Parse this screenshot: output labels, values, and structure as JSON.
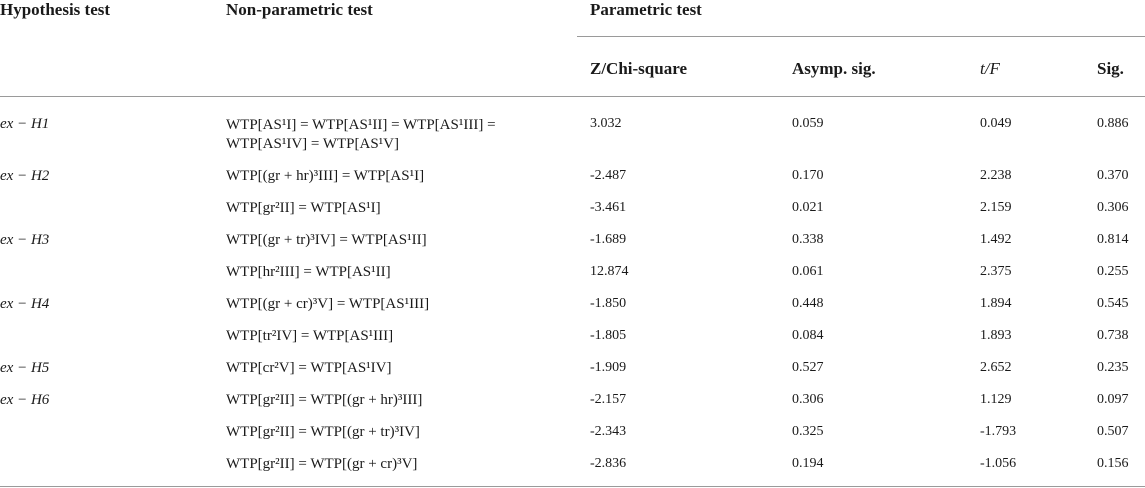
{
  "headers": {
    "hypothesis_test": "Hypothesis test",
    "non_parametric_test": "Non-parametric test",
    "parametric_test": "Parametric test",
    "z_chi_square": "Z/Chi-square",
    "asymp_sig": "Asymp. sig.",
    "t_f": "t/F",
    "sig": "Sig."
  },
  "rows": [
    {
      "hypothesis": "ex − H1",
      "formula": "WTP[AS¹I] = WTP[AS¹II] = WTP[AS¹III] = WTP[AS¹IV] = WTP[AS¹V]",
      "z": "3.032",
      "asymp": "0.059",
      "tf": "0.049",
      "sig": "0.886"
    },
    {
      "hypothesis": "ex − H2",
      "formula": "WTP[(gr + hr)³III] = WTP[AS¹I]",
      "z": "-2.487",
      "asymp": "0.170",
      "tf": "2.238",
      "sig": "0.370"
    },
    {
      "hypothesis": "",
      "formula": "WTP[gr²II] = WTP[AS¹I]",
      "z": "-3.461",
      "asymp": "0.021",
      "tf": "2.159",
      "sig": "0.306"
    },
    {
      "hypothesis": "ex − H3",
      "formula": "WTP[(gr + tr)³IV] = WTP[AS¹II]",
      "z": "-1.689",
      "asymp": "0.338",
      "tf": "1.492",
      "sig": "0.814"
    },
    {
      "hypothesis": "",
      "formula": "WTP[hr²III] = WTP[AS¹II]",
      "z": "12.874",
      "asymp": "0.061",
      "tf": "2.375",
      "sig": "0.255"
    },
    {
      "hypothesis": "ex − H4",
      "formula": "WTP[(gr + cr)³V] = WTP[AS¹III]",
      "z": "-1.850",
      "asymp": "0.448",
      "tf": "1.894",
      "sig": "0.545"
    },
    {
      "hypothesis": "",
      "formula": "WTP[tr²IV] = WTP[AS¹III]",
      "z": "-1.805",
      "asymp": "0.084",
      "tf": "1.893",
      "sig": "0.738"
    },
    {
      "hypothesis": "ex − H5",
      "formula": "WTP[cr²V] = WTP[AS¹IV]",
      "z": "-1.909",
      "asymp": "0.527",
      "tf": "2.652",
      "sig": "0.235"
    },
    {
      "hypothesis": "ex − H6",
      "formula": "WTP[gr²II] = WTP[(gr + hr)³III]",
      "z": "-2.157",
      "asymp": "0.306",
      "tf": "1.129",
      "sig": "0.097"
    },
    {
      "hypothesis": "",
      "formula": "WTP[gr²II] = WTP[(gr + tr)³IV]",
      "z": "-2.343",
      "asymp": "0.325",
      "tf": "-1.793",
      "sig": "0.507"
    },
    {
      "hypothesis": "",
      "formula": "WTP[gr²II] = WTP[(gr + cr)³V]",
      "z": "-2.836",
      "asymp": "0.194",
      "tf": "-1.056",
      "sig": "0.156"
    }
  ]
}
